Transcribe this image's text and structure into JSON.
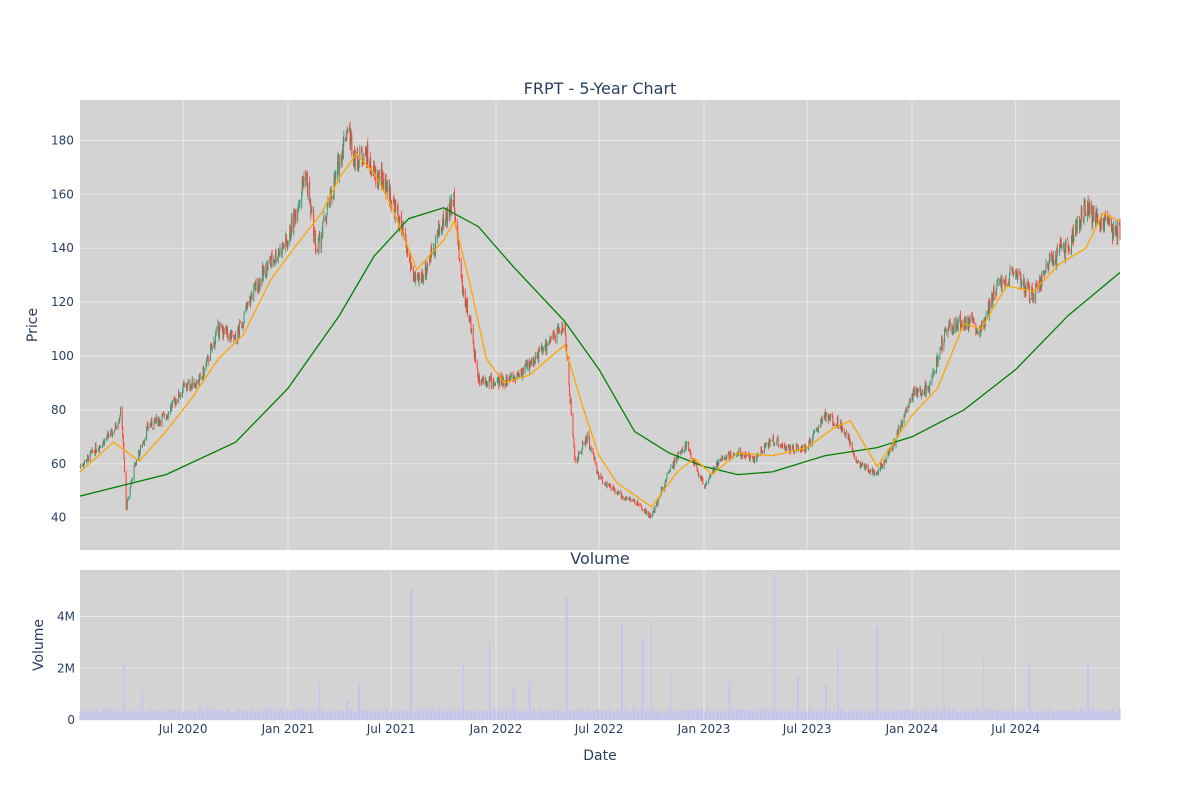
{
  "chart_data": [
    {
      "type": "candlestick",
      "title": "FRPT - 5-Year Chart",
      "ylabel": "Price",
      "ylim": [
        28,
        195
      ],
      "y_ticks": [
        40,
        60,
        80,
        100,
        120,
        140,
        160,
        180
      ],
      "x_ticks": [
        "Jul 2020",
        "Jan 2021",
        "Jul 2021",
        "Jan 2022",
        "Jul 2022",
        "Jan 2023",
        "Jul 2023",
        "Jan 2024",
        "Jul 2024"
      ],
      "x_tick_dates": [
        "2020-07-01",
        "2021-01-01",
        "2021-07-01",
        "2022-01-01",
        "2022-07-01",
        "2023-01-01",
        "2023-07-01",
        "2024-01-01",
        "2024-07-01"
      ],
      "xlim": [
        "2020-01-02",
        "2024-12-31"
      ],
      "grid": true,
      "colors": {
        "up": "#3d9970",
        "down": "#ff4136",
        "ma_short": "#ffa500",
        "ma_long": "#008000",
        "plot_bg": "#d3d3d3",
        "grid": "#e8e8e8"
      },
      "close_series": [
        [
          "2020-01-02",
          59
        ],
        [
          "2020-02-01",
          66
        ],
        [
          "2020-03-01",
          72
        ],
        [
          "2020-03-15",
          80
        ],
        [
          "2020-03-23",
          43
        ],
        [
          "2020-04-05",
          58
        ],
        [
          "2020-05-01",
          74
        ],
        [
          "2020-06-01",
          78
        ],
        [
          "2020-07-01",
          88
        ],
        [
          "2020-08-01",
          91
        ],
        [
          "2020-09-01",
          110
        ],
        [
          "2020-10-01",
          106
        ],
        [
          "2020-11-01",
          124
        ],
        [
          "2020-12-01",
          135
        ],
        [
          "2021-01-01",
          143
        ],
        [
          "2021-02-01",
          168
        ],
        [
          "2021-02-20",
          138
        ],
        [
          "2021-03-15",
          157
        ],
        [
          "2021-04-01",
          172
        ],
        [
          "2021-04-15",
          185
        ],
        [
          "2021-05-01",
          172
        ],
        [
          "2021-05-15",
          176
        ],
        [
          "2021-06-01",
          167
        ],
        [
          "2021-06-20",
          165
        ],
        [
          "2021-07-15",
          150
        ],
        [
          "2021-08-01",
          136
        ],
        [
          "2021-08-15",
          126
        ],
        [
          "2021-09-01",
          133
        ],
        [
          "2021-09-15",
          142
        ],
        [
          "2021-10-01",
          150
        ],
        [
          "2021-10-20",
          158
        ],
        [
          "2021-11-01",
          128
        ],
        [
          "2021-11-15",
          114
        ],
        [
          "2021-12-01",
          92
        ],
        [
          "2022-01-01",
          90
        ],
        [
          "2022-02-01",
          92
        ],
        [
          "2022-03-01",
          97
        ],
        [
          "2022-04-01",
          104
        ],
        [
          "2022-05-01",
          112
        ],
        [
          "2022-05-20",
          60
        ],
        [
          "2022-06-10",
          70
        ],
        [
          "2022-07-01",
          55
        ],
        [
          "2022-08-01",
          49
        ],
        [
          "2022-09-01",
          46
        ],
        [
          "2022-10-01",
          40
        ],
        [
          "2022-11-01",
          58
        ],
        [
          "2022-12-01",
          67
        ],
        [
          "2023-01-01",
          52
        ],
        [
          "2023-02-01",
          62
        ],
        [
          "2023-03-01",
          64
        ],
        [
          "2023-04-01",
          62
        ],
        [
          "2023-05-01",
          69
        ],
        [
          "2023-06-01",
          65
        ],
        [
          "2023-07-01",
          66
        ],
        [
          "2023-08-01",
          78
        ],
        [
          "2023-09-01",
          74
        ],
        [
          "2023-10-01",
          59
        ],
        [
          "2023-11-01",
          57
        ],
        [
          "2023-12-01",
          68
        ],
        [
          "2024-01-01",
          86
        ],
        [
          "2024-02-01",
          88
        ],
        [
          "2024-03-01",
          110
        ],
        [
          "2024-04-01",
          113
        ],
        [
          "2024-05-01",
          110
        ],
        [
          "2024-06-01",
          128
        ],
        [
          "2024-07-01",
          130
        ],
        [
          "2024-08-01",
          122
        ],
        [
          "2024-09-01",
          136
        ],
        [
          "2024-10-01",
          141
        ],
        [
          "2024-11-01",
          155
        ],
        [
          "2024-12-01",
          148
        ],
        [
          "2024-12-31",
          146
        ]
      ],
      "ma_short_series": [
        [
          "2020-01-02",
          57
        ],
        [
          "2020-03-01",
          68
        ],
        [
          "2020-04-15",
          61
        ],
        [
          "2020-06-01",
          72
        ],
        [
          "2020-07-15",
          84
        ],
        [
          "2020-09-01",
          99
        ],
        [
          "2020-10-15",
          108
        ],
        [
          "2020-12-01",
          128
        ],
        [
          "2021-01-15",
          141
        ],
        [
          "2021-03-01",
          153
        ],
        [
          "2021-04-01",
          166
        ],
        [
          "2021-05-01",
          175
        ],
        [
          "2021-06-01",
          168
        ],
        [
          "2021-07-01",
          156
        ],
        [
          "2021-08-15",
          132
        ],
        [
          "2021-10-01",
          143
        ],
        [
          "2021-10-20",
          150
        ],
        [
          "2021-11-15",
          128
        ],
        [
          "2021-12-15",
          99
        ],
        [
          "2022-01-15",
          90
        ],
        [
          "2022-03-01",
          93
        ],
        [
          "2022-05-01",
          104
        ],
        [
          "2022-06-01",
          82
        ],
        [
          "2022-07-01",
          63
        ],
        [
          "2022-08-01",
          53
        ],
        [
          "2022-10-01",
          44
        ],
        [
          "2022-11-15",
          57
        ],
        [
          "2022-12-15",
          62
        ],
        [
          "2023-01-15",
          56
        ],
        [
          "2023-03-01",
          64
        ],
        [
          "2023-05-01",
          63
        ],
        [
          "2023-07-01",
          66
        ],
        [
          "2023-08-15",
          73
        ],
        [
          "2023-09-15",
          76
        ],
        [
          "2023-11-01",
          59
        ],
        [
          "2024-01-01",
          78
        ],
        [
          "2024-02-15",
          88
        ],
        [
          "2024-04-01",
          112
        ],
        [
          "2024-05-01",
          110
        ],
        [
          "2024-06-15",
          126
        ],
        [
          "2024-08-01",
          124
        ],
        [
          "2024-09-15",
          134
        ],
        [
          "2024-11-01",
          140
        ],
        [
          "2024-12-01",
          153
        ],
        [
          "2024-12-31",
          150
        ]
      ],
      "ma_long_series": [
        [
          "2020-01-02",
          48
        ],
        [
          "2020-06-01",
          56
        ],
        [
          "2020-10-01",
          68
        ],
        [
          "2021-01-01",
          88
        ],
        [
          "2021-04-01",
          115
        ],
        [
          "2021-06-01",
          137
        ],
        [
          "2021-08-01",
          151
        ],
        [
          "2021-10-01",
          155
        ],
        [
          "2021-12-01",
          148
        ],
        [
          "2022-02-01",
          133
        ],
        [
          "2022-05-01",
          113
        ],
        [
          "2022-07-01",
          95
        ],
        [
          "2022-09-01",
          72
        ],
        [
          "2022-11-01",
          64
        ],
        [
          "2023-01-01",
          59
        ],
        [
          "2023-03-01",
          56
        ],
        [
          "2023-05-01",
          57
        ],
        [
          "2023-08-01",
          63
        ],
        [
          "2023-11-01",
          66
        ],
        [
          "2024-01-01",
          70
        ],
        [
          "2024-04-01",
          80
        ],
        [
          "2024-07-01",
          95
        ],
        [
          "2024-10-01",
          115
        ],
        [
          "2024-12-31",
          131
        ]
      ]
    },
    {
      "type": "bar",
      "title": "Volume",
      "xlabel": "Date",
      "ylabel": "Volume",
      "ylim": [
        0,
        5800000
      ],
      "y_ticks": [
        0,
        2000000,
        4000000
      ],
      "y_tick_labels": [
        "0",
        "2M",
        "4M"
      ],
      "bar_color": "#c4c4ee",
      "baseline_volume": 400000,
      "spikes": [
        [
          "2020-03-20",
          2100000
        ],
        [
          "2020-04-20",
          1100000
        ],
        [
          "2020-08-01",
          800000
        ],
        [
          "2021-02-26",
          1500000
        ],
        [
          "2021-04-15",
          800000
        ],
        [
          "2021-05-06",
          1400000
        ],
        [
          "2021-08-05",
          5100000
        ],
        [
          "2021-11-05",
          2100000
        ],
        [
          "2021-12-20",
          3000000
        ],
        [
          "2022-02-01",
          1300000
        ],
        [
          "2022-03-01",
          1500000
        ],
        [
          "2022-05-05",
          4800000
        ],
        [
          "2022-08-10",
          3700000
        ],
        [
          "2022-09-15",
          3200000
        ],
        [
          "2022-10-01",
          3800000
        ],
        [
          "2022-11-05",
          1800000
        ],
        [
          "2023-02-15",
          1500000
        ],
        [
          "2023-05-05",
          5600000
        ],
        [
          "2023-06-15",
          1700000
        ],
        [
          "2023-08-03",
          1400000
        ],
        [
          "2023-08-25",
          2800000
        ],
        [
          "2023-11-01",
          3600000
        ],
        [
          "2024-02-25",
          3500000
        ],
        [
          "2024-05-05",
          2500000
        ],
        [
          "2024-07-25",
          2200000
        ],
        [
          "2024-11-05",
          2100000
        ]
      ]
    }
  ]
}
